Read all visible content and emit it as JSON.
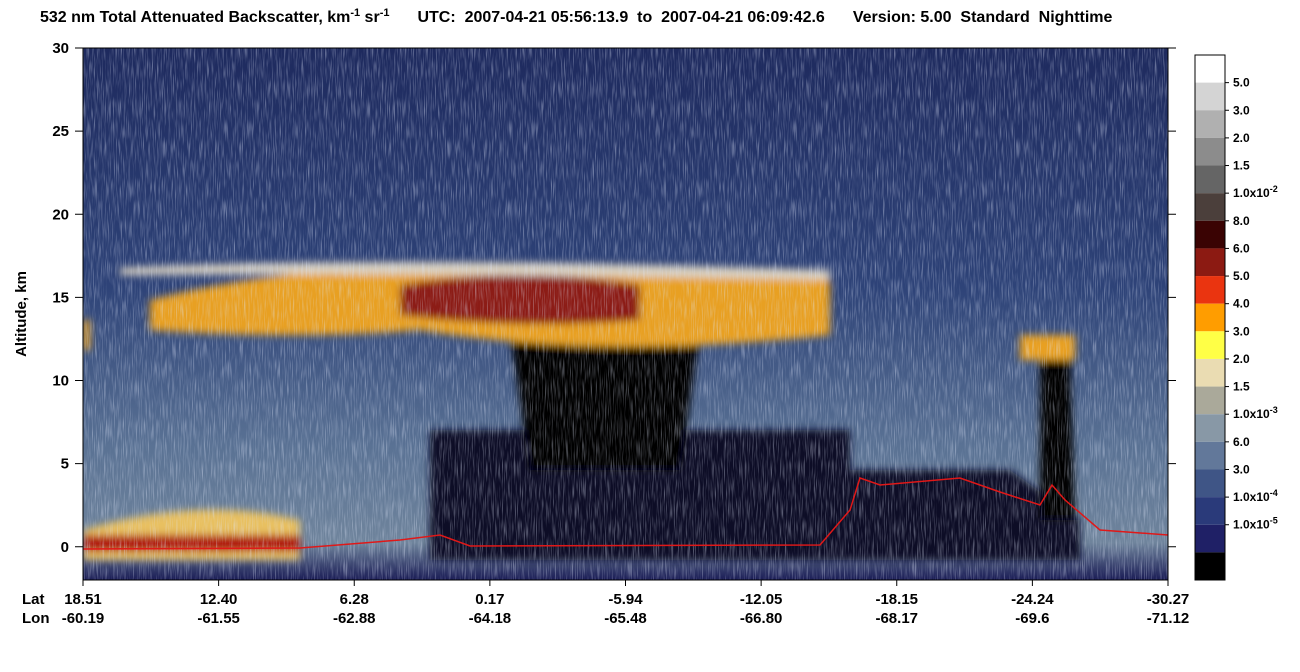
{
  "header": {
    "title": "532 nm Total Attenuated Backscatter, km",
    "title_exp1": "-1",
    "title_unit2": " sr",
    "title_exp2": "-1",
    "utc": "UTC:  2007-04-21 05:56:13.9  to  2007-04-21 06:09:42.6",
    "version": "Version: 5.00  Standard  Nighttime"
  },
  "y_axis": {
    "label": "Altitude, km",
    "ylim": [
      -2,
      30
    ],
    "yticks": [
      0,
      5,
      10,
      15,
      20,
      25,
      30
    ]
  },
  "x_axis": {
    "lat_label": "Lat",
    "lon_label": "Lon",
    "lat": [
      18.51,
      {
        "value": 12.4,
        "label": "12.40"
      },
      6.28,
      0.17,
      -5.94,
      -12.05,
      -18.15,
      -24.24,
      -30.27
    ],
    "lon": [
      -60.19,
      -61.55,
      -62.88,
      -64.18,
      -65.48,
      {
        "value": -66.8,
        "label": "-66.80"
      },
      -68.17,
      -69.6,
      -71.12
    ]
  },
  "colorbar": {
    "colors": [
      "#ffffff",
      "#d4d4d4",
      "#b0b0b0",
      "#8c8c8c",
      "#656565",
      "#4b3f3b",
      "#3a0303",
      "#8c1a12",
      "#ea3410",
      "#ff9d00",
      "#ffff46",
      "#eadcb2",
      "#aaa99a",
      "#8898a6",
      "#62789a",
      "#3f5586",
      "#2a3a7a",
      "#1f2066",
      "#000000"
    ],
    "labels": [
      "5.0",
      "3.0",
      "2.0",
      "1.5",
      {
        "mantissa": "1.0x10",
        "exponent": "-2"
      },
      "8.0",
      "6.0",
      "5.0",
      "4.0",
      "3.0",
      "2.0",
      "1.5",
      {
        "mantissa": "1.0x10",
        "exponent": "-3"
      },
      "6.0",
      "3.0",
      {
        "mantissa": "1.0x10",
        "exponent": "-4"
      },
      {
        "mantissa": "1.0x10",
        "exponent": "-5"
      }
    ]
  }
}
